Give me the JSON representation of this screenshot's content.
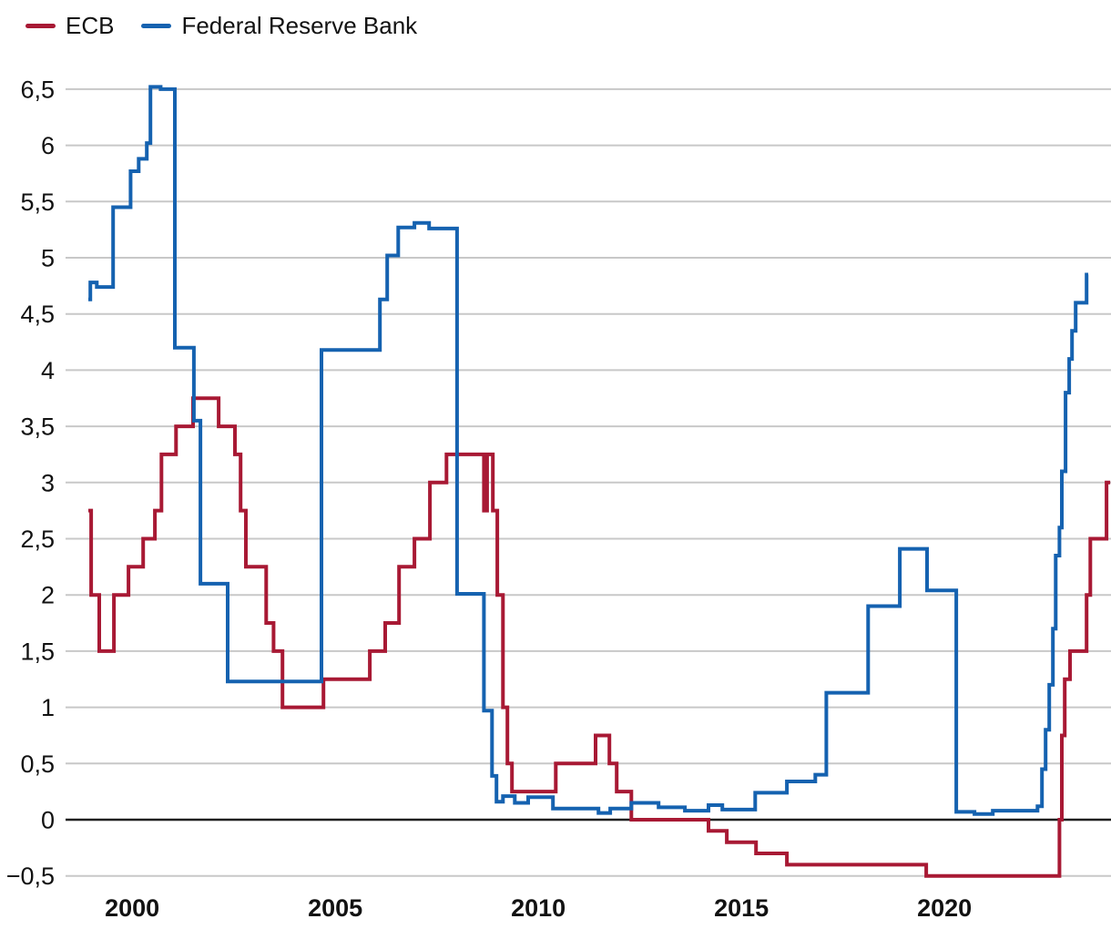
{
  "legend": [
    {
      "label": "ECB",
      "color": "#A81934"
    },
    {
      "label": "Federal Reserve Bank",
      "color": "#1562B0"
    }
  ],
  "chart_data": {
    "type": "line",
    "step": true,
    "title": "",
    "xlabel": "",
    "ylabel": "",
    "grid": true,
    "legend_position": "top-left",
    "x_axis": {
      "range": [
        1998.36,
        2024.1
      ],
      "ticks": [
        {
          "v": 2000,
          "label": "2000"
        },
        {
          "v": 2005,
          "label": "2005"
        },
        {
          "v": 2010,
          "label": "2010"
        },
        {
          "v": 2015,
          "label": "2015"
        },
        {
          "v": 2020,
          "label": "2020"
        }
      ]
    },
    "y_axis": {
      "range": [
        -0.5,
        6.5
      ],
      "ticks": [
        {
          "v": 6.5,
          "label": "6,5"
        },
        {
          "v": 6,
          "label": "6"
        },
        {
          "v": 5.5,
          "label": "5,5"
        },
        {
          "v": 5,
          "label": "5"
        },
        {
          "v": 4.5,
          "label": "4,5"
        },
        {
          "v": 4,
          "label": "4"
        },
        {
          "v": 3.5,
          "label": "3,5"
        },
        {
          "v": 3,
          "label": "3"
        },
        {
          "v": 2.5,
          "label": "2,5"
        },
        {
          "v": 2,
          "label": "2"
        },
        {
          "v": 1.5,
          "label": "1,5"
        },
        {
          "v": 1,
          "label": "1"
        },
        {
          "v": 0.5,
          "label": "0,5"
        },
        {
          "v": 0,
          "label": "0"
        },
        {
          "v": -0.5,
          "label": "−0,5"
        }
      ]
    },
    "series": [
      {
        "name": "ECB",
        "color": "#A81934",
        "end": 2024.08,
        "points": [
          [
            1998.92,
            2.75
          ],
          [
            1998.99,
            2.0
          ],
          [
            1999.19,
            1.5
          ],
          [
            1999.55,
            2.0
          ],
          [
            1999.91,
            2.25
          ],
          [
            2000.27,
            2.5
          ],
          [
            2000.56,
            2.75
          ],
          [
            2000.72,
            3.25
          ],
          [
            2001.08,
            3.5
          ],
          [
            2001.5,
            3.75
          ],
          [
            2002.13,
            3.5
          ],
          [
            2002.53,
            3.25
          ],
          [
            2002.67,
            2.75
          ],
          [
            2002.8,
            2.25
          ],
          [
            2003.3,
            1.75
          ],
          [
            2003.48,
            1.5
          ],
          [
            2003.7,
            1.0
          ],
          [
            2004.71,
            1.25
          ],
          [
            2005.85,
            1.5
          ],
          [
            2006.23,
            1.75
          ],
          [
            2006.57,
            2.25
          ],
          [
            2006.95,
            2.5
          ],
          [
            2007.33,
            3.0
          ],
          [
            2007.74,
            3.25
          ],
          [
            2008.66,
            2.75
          ],
          [
            2008.74,
            3.25
          ],
          [
            2008.88,
            2.75
          ],
          [
            2008.99,
            2.0
          ],
          [
            2009.13,
            1.0
          ],
          [
            2009.24,
            0.5
          ],
          [
            2009.35,
            0.25
          ],
          [
            2010.43,
            0.5
          ],
          [
            2011.41,
            0.75
          ],
          [
            2011.75,
            0.5
          ],
          [
            2011.93,
            0.25
          ],
          [
            2012.29,
            0.0
          ],
          [
            2014.19,
            -0.1
          ],
          [
            2014.64,
            -0.2
          ],
          [
            2015.36,
            -0.3
          ],
          [
            2016.12,
            -0.4
          ],
          [
            2019.55,
            -0.5
          ],
          [
            2022.83,
            0.0
          ],
          [
            2022.89,
            0.75
          ],
          [
            2022.96,
            1.25
          ],
          [
            2023.09,
            1.5
          ],
          [
            2023.5,
            2.0
          ],
          [
            2023.59,
            2.5
          ],
          [
            2023.99,
            3.0
          ]
        ]
      },
      {
        "name": "Federal Reserve Bank",
        "color": "#1562B0",
        "end": 2023.54,
        "points": [
          [
            1998.92,
            4.63
          ],
          [
            1998.97,
            4.78
          ],
          [
            1999.13,
            4.74
          ],
          [
            1999.53,
            5.45
          ],
          [
            1999.96,
            5.77
          ],
          [
            2000.16,
            5.88
          ],
          [
            2000.36,
            6.02
          ],
          [
            2000.45,
            6.52
          ],
          [
            2000.7,
            6.5
          ],
          [
            2001.05,
            4.2
          ],
          [
            2001.52,
            3.55
          ],
          [
            2001.68,
            2.1
          ],
          [
            2002.35,
            1.23
          ],
          [
            2004.66,
            4.18
          ],
          [
            2006.1,
            4.63
          ],
          [
            2006.28,
            5.02
          ],
          [
            2006.55,
            5.27
          ],
          [
            2006.95,
            5.31
          ],
          [
            2007.31,
            5.26
          ],
          [
            2008.0,
            2.01
          ],
          [
            2008.66,
            0.97
          ],
          [
            2008.86,
            0.39
          ],
          [
            2008.97,
            0.16
          ],
          [
            2009.13,
            0.21
          ],
          [
            2009.42,
            0.15
          ],
          [
            2009.75,
            0.2
          ],
          [
            2010.36,
            0.1
          ],
          [
            2011.48,
            0.06
          ],
          [
            2011.77,
            0.1
          ],
          [
            2012.29,
            0.15
          ],
          [
            2012.96,
            0.11
          ],
          [
            2013.61,
            0.08
          ],
          [
            2014.19,
            0.13
          ],
          [
            2014.53,
            0.09
          ],
          [
            2015.34,
            0.24
          ],
          [
            2016.12,
            0.34
          ],
          [
            2016.82,
            0.4
          ],
          [
            2017.09,
            1.13
          ],
          [
            2018.12,
            1.9
          ],
          [
            2018.9,
            2.41
          ],
          [
            2019.57,
            2.04
          ],
          [
            2020.29,
            0.07
          ],
          [
            2020.74,
            0.05
          ],
          [
            2021.19,
            0.08
          ],
          [
            2022.29,
            0.12
          ],
          [
            2022.4,
            0.45
          ],
          [
            2022.49,
            0.8
          ],
          [
            2022.58,
            1.2
          ],
          [
            2022.67,
            1.7
          ],
          [
            2022.74,
            2.35
          ],
          [
            2022.83,
            2.6
          ],
          [
            2022.89,
            3.1
          ],
          [
            2022.98,
            3.8
          ],
          [
            2023.07,
            4.1
          ],
          [
            2023.14,
            4.35
          ],
          [
            2023.23,
            4.6
          ],
          [
            2023.5,
            4.85
          ]
        ]
      }
    ],
    "colors": {
      "gridline": "#C8C8C8",
      "zero_line": "#1F1F1F",
      "text": "#121212"
    }
  }
}
